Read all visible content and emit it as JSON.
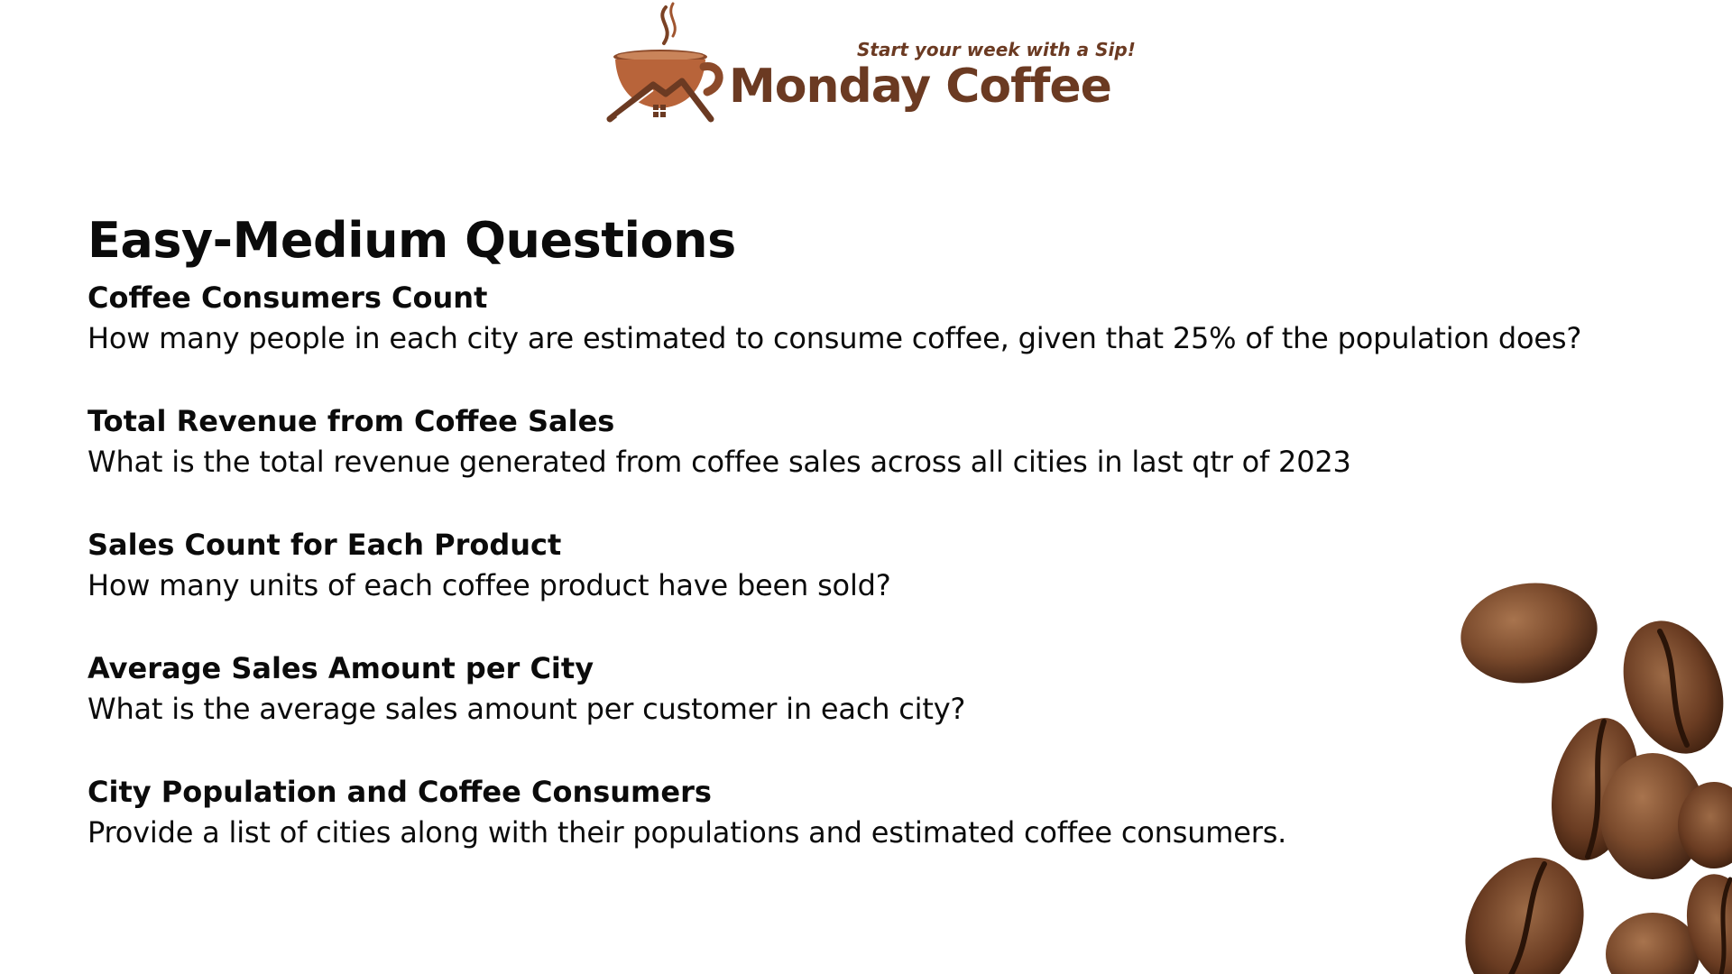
{
  "logo": {
    "tagline": "Start your week with a Sip!",
    "name": "Monday Coffee"
  },
  "page": {
    "title": "Easy-Medium Questions"
  },
  "questions": [
    {
      "title": "Coffee Consumers Count",
      "text": "How many people in each city are estimated to consume coffee, given that 25% of the population does?"
    },
    {
      "title": "Total Revenue from Coffee Sales",
      "text": "What is the total revenue generated from coffee sales across all cities in last qtr of 2023"
    },
    {
      "title": "Sales Count for Each Product",
      "text": "How many units of each coffee product have been sold?"
    },
    {
      "title": "Average Sales Amount per City",
      "text": "What is the average sales amount per customer in each city?"
    },
    {
      "title": "City Population and Coffee Consumers",
      "text": "Provide a list of cities along with their populations and estimated coffee consumers."
    }
  ],
  "colors": {
    "brand_brown": "#6b3a22",
    "cup_orange": "#b8643a",
    "text": "#0b0b0b"
  },
  "icons": {
    "logo_mark": "coffee-cup-house-icon",
    "decoration": "coffee-beans-image"
  }
}
